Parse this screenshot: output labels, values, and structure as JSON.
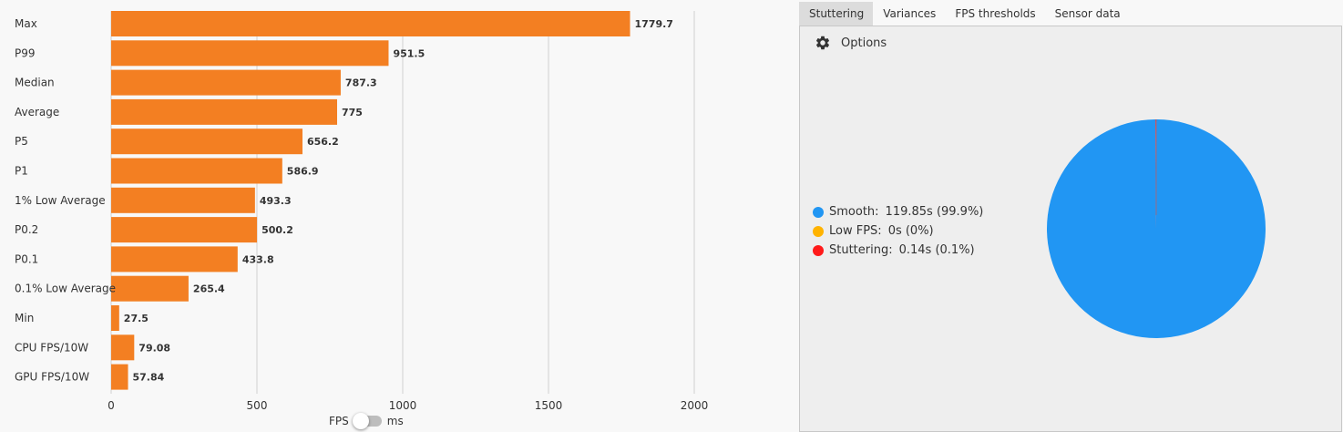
{
  "bar_chart": {
    "tick_labels": [
      "0",
      "500",
      "1000",
      "1500",
      "2000"
    ],
    "toggle": {
      "left_label": "FPS",
      "right_label": "ms",
      "selected": "FPS"
    },
    "bar_color": "#f37f22"
  },
  "tabs": [
    {
      "label": "Stuttering",
      "active": true
    },
    {
      "label": "Variances",
      "active": false
    },
    {
      "label": "FPS thresholds",
      "active": false
    },
    {
      "label": "Sensor data",
      "active": false
    }
  ],
  "options_label": "Options",
  "legend": [
    {
      "label": "Smooth:",
      "value": "119.85s (99.9%)",
      "color": "#2196f3"
    },
    {
      "label": "Low FPS:",
      "value": "0s (0%)",
      "color": "#ffb300"
    },
    {
      "label": "Stuttering:",
      "value": "0.14s (0.1%)",
      "color": "#ff1a1a"
    }
  ],
  "chart_data": [
    {
      "type": "bar",
      "orientation": "horizontal",
      "categories": [
        "Max",
        "P99",
        "Median",
        "Average",
        "P5",
        "P1",
        "1% Low Average",
        "P0.2",
        "P0.1",
        "0.1% Low Average",
        "Min",
        "CPU FPS/10W",
        "GPU FPS/10W"
      ],
      "values": [
        1779.7,
        951.5,
        787.3,
        775,
        656.2,
        586.9,
        493.3,
        500.2,
        433.8,
        265.4,
        27.5,
        79.08,
        57.84
      ],
      "value_labels": [
        "1779.7",
        "951.5",
        "787.3",
        "775",
        "656.2",
        "586.9",
        "493.3",
        "500.2",
        "433.8",
        "265.4",
        "27.5",
        "79.08",
        "57.84"
      ],
      "xlim": [
        0,
        2000
      ],
      "xticks": [
        0,
        500,
        1000,
        1500,
        2000
      ],
      "grid": true,
      "color": "#f37f22"
    },
    {
      "type": "pie",
      "categories": [
        "Smooth",
        "Low FPS",
        "Stuttering"
      ],
      "values": [
        119.85,
        0,
        0.14
      ],
      "colors": [
        "#2196f3",
        "#ffb300",
        "#ff1a1a"
      ]
    }
  ]
}
